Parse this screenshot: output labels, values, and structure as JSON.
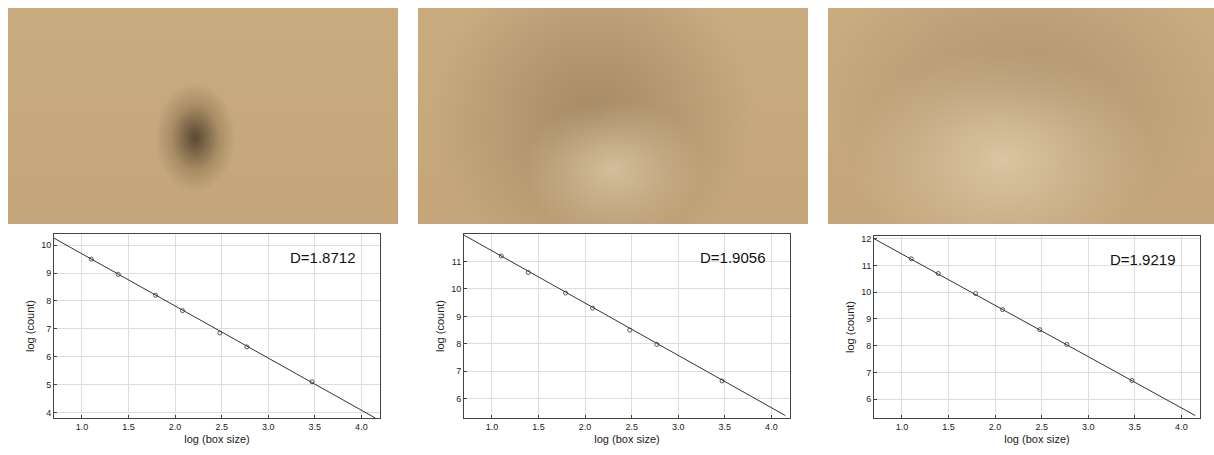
{
  "chart_data": [
    {
      "type": "scatter",
      "x_label": "log (box size)",
      "y_label": "log (count)",
      "annotations": [
        {
          "text": "D=1.8712"
        }
      ],
      "series": [
        {
          "type": "scatter",
          "marker": "circle",
          "color": "#555555",
          "x": [
            1.1,
            1.39,
            1.79,
            2.08,
            2.48,
            2.77,
            3.47
          ],
          "values": [
            9.5,
            8.95,
            8.2,
            7.65,
            6.85,
            6.35,
            5.1
          ]
        },
        {
          "type": "line",
          "line_style": "solid",
          "color": "#333333",
          "x": [
            0.7,
            4.15
          ],
          "values": [
            10.25,
            3.8
          ]
        }
      ],
      "xlim": [
        0.7,
        4.2
      ],
      "ylim": [
        3.8,
        10.4
      ],
      "xticks": [
        {
          "value": 1.0,
          "label": "1.0"
        },
        {
          "value": 1.5,
          "label": "1.5"
        },
        {
          "value": 2.0,
          "label": "2.0"
        },
        {
          "value": 2.5,
          "label": "2.5"
        },
        {
          "value": 3.0,
          "label": "3.0"
        },
        {
          "value": 3.5,
          "label": "3.5"
        },
        {
          "value": 4.0,
          "label": "4.0"
        }
      ],
      "yticks": [
        4,
        5,
        6,
        7,
        8,
        9,
        10
      ],
      "grid": true
    },
    {
      "type": "scatter",
      "x_label": "log (box size)",
      "y_label": "log (count)",
      "annotations": [
        {
          "text": "D=1.9056"
        }
      ],
      "series": [
        {
          "type": "scatter",
          "marker": "circle",
          "color": "#555555",
          "x": [
            1.1,
            1.39,
            1.79,
            2.08,
            2.48,
            2.77,
            3.47
          ],
          "values": [
            11.2,
            10.6,
            9.85,
            9.3,
            8.5,
            7.98,
            6.65
          ]
        },
        {
          "type": "line",
          "line_style": "solid",
          "color": "#333333",
          "x": [
            0.7,
            4.15
          ],
          "values": [
            11.96,
            5.39
          ]
        }
      ],
      "xlim": [
        0.7,
        4.2
      ],
      "ylim": [
        5.3,
        12.0
      ],
      "xticks": [
        {
          "value": 1.0,
          "label": "1.0"
        },
        {
          "value": 1.5,
          "label": "1.5"
        },
        {
          "value": 2.0,
          "label": "2.0"
        },
        {
          "value": 2.5,
          "label": "2.5"
        },
        {
          "value": 3.0,
          "label": "3.0"
        },
        {
          "value": 3.5,
          "label": "3.5"
        },
        {
          "value": 4.0,
          "label": "4.0"
        }
      ],
      "yticks": [
        6,
        7,
        8,
        9,
        10,
        11
      ],
      "grid": true
    },
    {
      "type": "scatter",
      "x_label": "log (box size)",
      "y_label": "log (count)",
      "annotations": [
        {
          "text": "D=1.9219"
        }
      ],
      "series": [
        {
          "type": "scatter",
          "marker": "circle",
          "color": "#555555",
          "x": [
            1.1,
            1.39,
            1.79,
            2.08,
            2.48,
            2.77,
            3.47
          ],
          "values": [
            11.25,
            10.7,
            9.95,
            9.35,
            8.6,
            8.05,
            6.7
          ]
        },
        {
          "type": "line",
          "line_style": "solid",
          "color": "#333333",
          "x": [
            0.7,
            4.15
          ],
          "values": [
            12.0,
            5.39
          ]
        }
      ],
      "xlim": [
        0.7,
        4.2
      ],
      "ylim": [
        5.3,
        12.1
      ],
      "xticks": [
        {
          "value": 1.0,
          "label": "1.0"
        },
        {
          "value": 1.5,
          "label": "1.5"
        },
        {
          "value": 2.0,
          "label": "2.0"
        },
        {
          "value": 2.5,
          "label": "2.5"
        },
        {
          "value": 3.0,
          "label": "3.0"
        },
        {
          "value": 3.5,
          "label": "3.5"
        },
        {
          "value": 4.0,
          "label": "4.0"
        }
      ],
      "yticks": [
        6,
        7,
        8,
        9,
        10,
        11,
        12
      ],
      "grid": true
    }
  ]
}
